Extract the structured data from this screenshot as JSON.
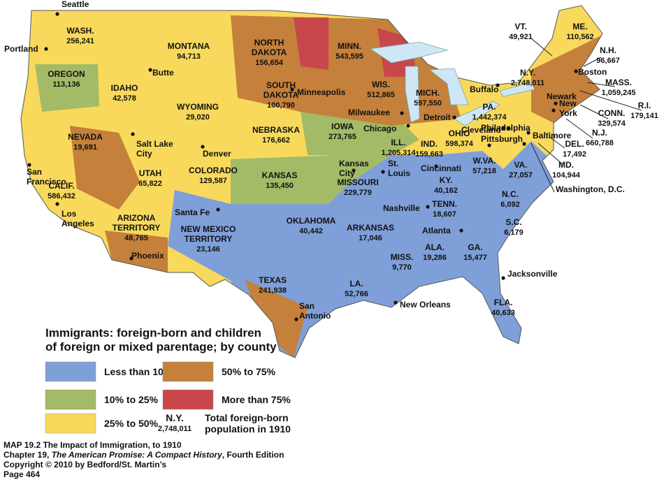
{
  "map": {
    "states": [
      {
        "name_lines": [
          "WASH."
        ],
        "total": "256,241"
      },
      {
        "name_lines": [
          "OREGON"
        ],
        "total": "113,136"
      },
      {
        "name_lines": [
          "CALIF."
        ],
        "total": "586,432"
      },
      {
        "name_lines": [
          "NEVADA"
        ],
        "total": "19,691"
      },
      {
        "name_lines": [
          "IDAHO"
        ],
        "total": "42,578"
      },
      {
        "name_lines": [
          "MONTANA"
        ],
        "total": "94,713"
      },
      {
        "name_lines": [
          "WYOMING"
        ],
        "total": "29,020"
      },
      {
        "name_lines": [
          "UTAH"
        ],
        "total": "65,822"
      },
      {
        "name_lines": [
          "COLORADO"
        ],
        "total": "129,587"
      },
      {
        "name_lines": [
          "ARIZONA",
          "TERRITORY"
        ],
        "total": "48,765"
      },
      {
        "name_lines": [
          "NEW MEXICO",
          "TERRITORY"
        ],
        "total": "23,146"
      },
      {
        "name_lines": [
          "NORTH",
          "DAKOTA"
        ],
        "total": "156,654"
      },
      {
        "name_lines": [
          "SOUTH",
          "DAKOTA"
        ],
        "total": "100,790"
      },
      {
        "name_lines": [
          "NEBRASKA"
        ],
        "total": "176,662"
      },
      {
        "name_lines": [
          "KANSAS"
        ],
        "total": "135,450"
      },
      {
        "name_lines": [
          "OKLAHOMA"
        ],
        "total": "40,442"
      },
      {
        "name_lines": [
          "TEXAS"
        ],
        "total": "241,938"
      },
      {
        "name_lines": [
          "MINN."
        ],
        "total": "543,595"
      },
      {
        "name_lines": [
          "IOWA"
        ],
        "total": "273,765"
      },
      {
        "name_lines": [
          "MISSOURI"
        ],
        "total": "229,779"
      },
      {
        "name_lines": [
          "ARKANSAS"
        ],
        "total": "17,046"
      },
      {
        "name_lines": [
          "LA."
        ],
        "total": "52,766"
      },
      {
        "name_lines": [
          "WIS."
        ],
        "total": "512,865"
      },
      {
        "name_lines": [
          "ILL."
        ],
        "total": "1,205,314"
      },
      {
        "name_lines": [
          "MICH."
        ],
        "total": "597,550"
      },
      {
        "name_lines": [
          "IND."
        ],
        "total": "159,663"
      },
      {
        "name_lines": [
          "OHIO"
        ],
        "total": "598,374"
      },
      {
        "name_lines": [
          "KY."
        ],
        "total": "40,162"
      },
      {
        "name_lines": [
          "TENN."
        ],
        "total": "18,607"
      },
      {
        "name_lines": [
          "MISS."
        ],
        "total": "9,770"
      },
      {
        "name_lines": [
          "ALA."
        ],
        "total": "19,286"
      },
      {
        "name_lines": [
          "GA."
        ],
        "total": "15,477"
      },
      {
        "name_lines": [
          "FLA."
        ],
        "total": "40,633"
      },
      {
        "name_lines": [
          "S.C."
        ],
        "total": "6,179"
      },
      {
        "name_lines": [
          "N.C."
        ],
        "total": "6,092"
      },
      {
        "name_lines": [
          "VA."
        ],
        "total": "27,057"
      },
      {
        "name_lines": [
          "W.VA."
        ],
        "total": "57,218"
      },
      {
        "name_lines": [
          "MD."
        ],
        "total": "104,944"
      },
      {
        "name_lines": [
          "DEL."
        ],
        "total": "17,492"
      },
      {
        "name_lines": [
          "N.J."
        ],
        "total": "660,788"
      },
      {
        "name_lines": [
          "PA."
        ],
        "total": "1,442,374"
      },
      {
        "name_lines": [
          "N.Y."
        ],
        "total": "2,748,011"
      },
      {
        "name_lines": [
          "CONN."
        ],
        "total": "329,574"
      },
      {
        "name_lines": [
          "R.I."
        ],
        "total": "179,141"
      },
      {
        "name_lines": [
          "MASS."
        ],
        "total": "1,059,245"
      },
      {
        "name_lines": [
          "N.H."
        ],
        "total": "96,667"
      },
      {
        "name_lines": [
          "VT."
        ],
        "total": "49,921"
      },
      {
        "name_lines": [
          "ME."
        ],
        "total": "110,562"
      }
    ],
    "cities": [
      {
        "name_lines": [
          "Seattle"
        ]
      },
      {
        "name_lines": [
          "Portland"
        ]
      },
      {
        "name_lines": [
          "Butte"
        ]
      },
      {
        "name_lines": [
          "Salt Lake",
          "City"
        ]
      },
      {
        "name_lines": [
          "Denver"
        ]
      },
      {
        "name_lines": [
          "San",
          "Francisco"
        ]
      },
      {
        "name_lines": [
          "Los",
          "Angeles"
        ]
      },
      {
        "name_lines": [
          "Santa Fe"
        ]
      },
      {
        "name_lines": [
          "Phoenix"
        ]
      },
      {
        "name_lines": [
          "Minneapolis"
        ]
      },
      {
        "name_lines": [
          "Milwaukee"
        ]
      },
      {
        "name_lines": [
          "Chicago"
        ]
      },
      {
        "name_lines": [
          "Detroit"
        ]
      },
      {
        "name_lines": [
          "Cleveland"
        ]
      },
      {
        "name_lines": [
          "Buffalo"
        ]
      },
      {
        "name_lines": [
          "Kansas",
          "City"
        ]
      },
      {
        "name_lines": [
          "St.",
          "Louis"
        ]
      },
      {
        "name_lines": [
          "Cincinnati"
        ]
      },
      {
        "name_lines": [
          "Pittsburgh"
        ]
      },
      {
        "name_lines": [
          "Philadelphia"
        ]
      },
      {
        "name_lines": [
          "Baltimore"
        ]
      },
      {
        "name_lines": [
          "Newark"
        ]
      },
      {
        "name_lines": [
          "New",
          "York"
        ]
      },
      {
        "name_lines": [
          "Boston"
        ]
      },
      {
        "name_lines": [
          "Washington, D.C."
        ]
      },
      {
        "name_lines": [
          "Nashville"
        ]
      },
      {
        "name_lines": [
          "Atlanta"
        ]
      },
      {
        "name_lines": [
          "Jacksonville"
        ]
      },
      {
        "name_lines": [
          "New Orleans"
        ]
      },
      {
        "name_lines": [
          "San",
          "Antonio"
        ]
      }
    ]
  },
  "legend": {
    "title_lines": [
      "Immigrants: foreign-born and children",
      "of foreign or mixed parentage; by county"
    ],
    "items": [
      {
        "label": "Less than 10%",
        "color": "#7f9fd8"
      },
      {
        "label": "10% to 25%",
        "color": "#a3bb66"
      },
      {
        "label": "25% to 50%",
        "color": "#f8d95c"
      },
      {
        "label": "50% to 75%",
        "color": "#c5803b"
      },
      {
        "label": "More than 75%",
        "color": "#c8474b"
      }
    ],
    "sample": {
      "state": "N.Y.",
      "total": "2,748,011",
      "label_lines": [
        "Total foreign-born",
        "population in 1910"
      ]
    }
  },
  "caption": {
    "lines": [
      [
        "MAP 19.2 The Impact of Immigration, to 1910"
      ],
      [
        "Chapter 19, ",
        "The American Promise: A Compact History",
        ", Fourth Edition"
      ],
      [
        "Copyright © 2010 by Bedford/St. Martin’s"
      ],
      [
        "Page 464"
      ]
    ]
  }
}
